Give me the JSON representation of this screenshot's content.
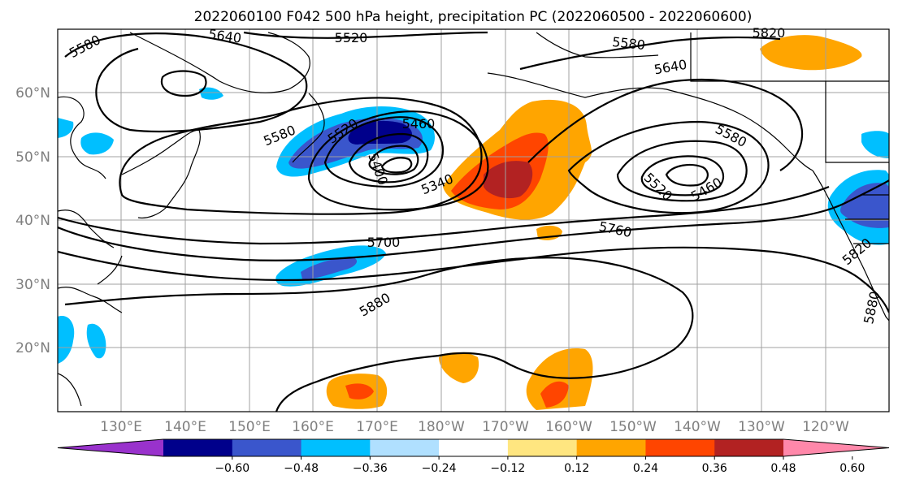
{
  "title": "2022060100 F042 500 hPa height, precipitation PC (2022060500 - 2022060600)",
  "lon_labels": [
    "130°E",
    "140°E",
    "150°E",
    "160°E",
    "170°E",
    "180°W",
    "170°W",
    "160°W",
    "150°W",
    "140°W",
    "130°W",
    "120°W"
  ],
  "lat_labels": [
    "60°N",
    "50°N",
    "40°N",
    "30°N",
    "20°N"
  ],
  "colorbar": {
    "colors": [
      "#9932cc",
      "#00008b",
      "#3a56cc",
      "#00bfff",
      "#b0e0ff",
      "#ffffff",
      "#ffe680",
      "#ffa500",
      "#ff4500",
      "#b22222",
      "#ff88aa"
    ],
    "tick_labels": [
      "−0.60",
      "−0.48",
      "−0.36",
      "−0.24",
      "−0.12",
      "0.12",
      "0.24",
      "0.36",
      "0.48",
      "0.60"
    ]
  },
  "contour_labels": [
    {
      "text": "5580"
    },
    {
      "text": "5640"
    },
    {
      "text": "5520"
    },
    {
      "text": "5580"
    },
    {
      "text": "5640"
    },
    {
      "text": "5580"
    },
    {
      "text": "5520"
    },
    {
      "text": "5460"
    },
    {
      "text": "5400"
    },
    {
      "text": "5340"
    },
    {
      "text": "5580"
    },
    {
      "text": "5520"
    },
    {
      "text": "5460"
    },
    {
      "text": "5700"
    },
    {
      "text": "5760"
    },
    {
      "text": "5880"
    },
    {
      "text": "5820"
    },
    {
      "text": "5880"
    },
    {
      "text": "5820"
    }
  ]
}
